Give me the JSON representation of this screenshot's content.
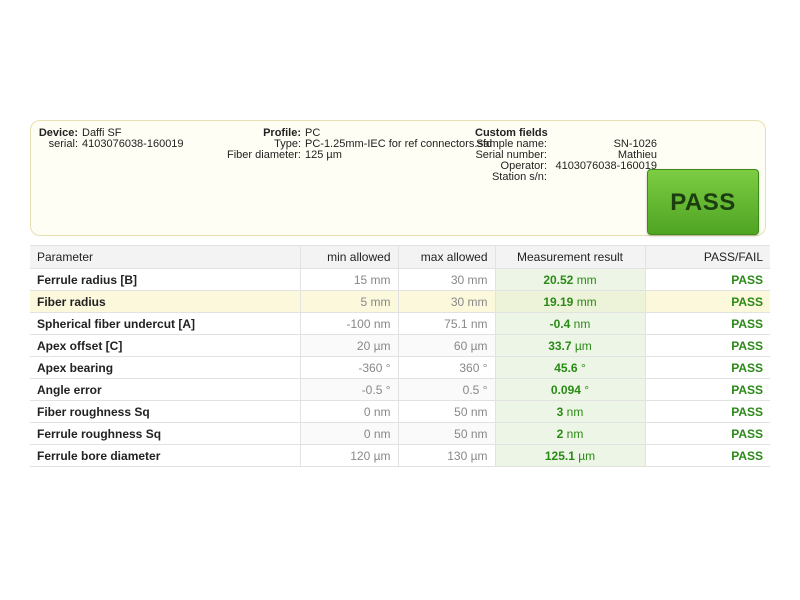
{
  "device": {
    "device_label": "Device:",
    "device_value": "Daffi SF",
    "serial_label": "serial:",
    "serial_value": "4103076038-160019"
  },
  "profile": {
    "profile_label": "Profile:",
    "profile_value": "PC",
    "type_label": "Type:",
    "type_value": "PC-1.25mm-IEC for ref connectors.sfd",
    "fiber_label": "Fiber diameter:",
    "fiber_value": "125 µm"
  },
  "custom": {
    "title": "Custom fields",
    "sample_label": "Sample name:",
    "sample_value": "SN-1026",
    "serial_label": "Serial number:",
    "serial_value": "Mathieu",
    "operator_label": "Operator:",
    "operator_value": "4103076038-160019",
    "station_label": "Station s/n:",
    "station_value": ""
  },
  "result_badge": "PASS",
  "colors": {
    "pass_green": "#5cb82f",
    "value_green": "#2a8a16",
    "highlight_row": "#fbf8dc"
  },
  "table": {
    "headers": [
      "Parameter",
      "min allowed",
      "max allowed",
      "Measurement result",
      "PASS/FAIL"
    ],
    "rows": [
      {
        "param": "Ferrule radius [B]",
        "min": "15 mm",
        "max": "30 mm",
        "meas": "20.52",
        "unit": "mm",
        "status": "PASS"
      },
      {
        "param": "Fiber radius",
        "min": "5 mm",
        "max": "30 mm",
        "meas": "19.19",
        "unit": "mm",
        "status": "PASS"
      },
      {
        "param": "Spherical fiber undercut [A]",
        "min": "-100 nm",
        "max": "75.1 nm",
        "meas": "-0.4",
        "unit": "nm",
        "status": "PASS"
      },
      {
        "param": "Apex offset [C]",
        "min": "20 µm",
        "max": "60 µm",
        "meas": "33.7",
        "unit": "µm",
        "status": "PASS"
      },
      {
        "param": "Apex bearing",
        "min": "-360 °",
        "max": "360 °",
        "meas": "45.6",
        "unit": "°",
        "status": "PASS"
      },
      {
        "param": "Angle error",
        "min": "-0.5 °",
        "max": "0.5 °",
        "meas": "0.094",
        "unit": "°",
        "status": "PASS"
      },
      {
        "param": "Fiber roughness Sq",
        "min": "0 nm",
        "max": "50 nm",
        "meas": "3",
        "unit": "nm",
        "status": "PASS"
      },
      {
        "param": "Ferrule roughness Sq",
        "min": "0 nm",
        "max": "50 nm",
        "meas": "2",
        "unit": "nm",
        "status": "PASS"
      },
      {
        "param": "Ferrule bore diameter",
        "min": "120 µm",
        "max": "130 µm",
        "meas": "125.1",
        "unit": "µm",
        "status": "PASS"
      }
    ]
  }
}
